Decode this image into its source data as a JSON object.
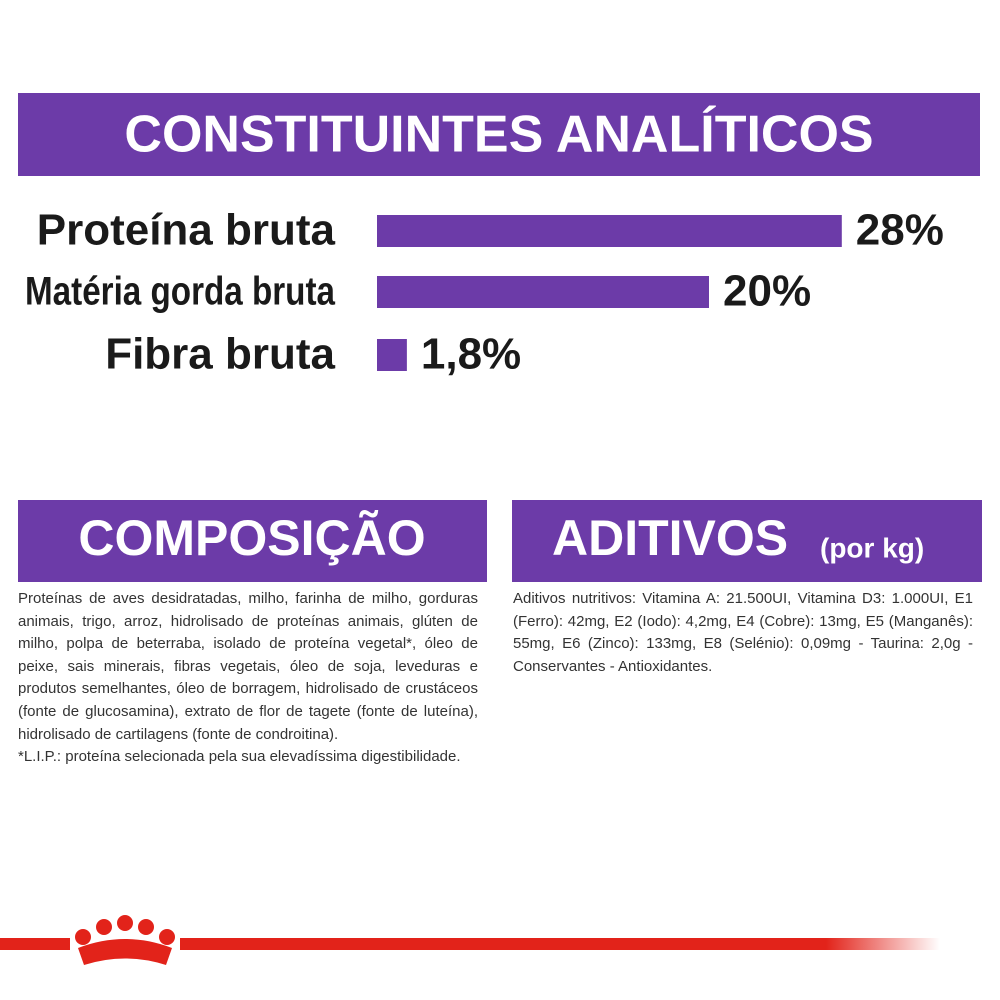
{
  "header": {
    "title": "CONSTITUINTES ANALÍTICOS"
  },
  "chart_data": {
    "type": "bar",
    "orientation": "horizontal",
    "categories": [
      "Proteína bruta",
      "Matéria gorda bruta",
      "Fibra bruta"
    ],
    "values": [
      28,
      20,
      1.8
    ],
    "value_labels": [
      "28%",
      "20%",
      "1,8%"
    ],
    "color": "#6c3ba8"
  },
  "composition": {
    "title": "COMPOSIÇÃO",
    "text": "Proteínas de aves desidratadas, milho, farinha de milho, gorduras animais, trigo, arroz, hidrolisado de proteínas animais, glúten de milho, polpa de beterraba, isolado de proteína vegetal*, óleo de peixe, sais minerais, fibras vegetais, óleo de soja, leveduras e produtos semelhantes, óleo de borragem, hidrolisado de crustáceos (fonte de glucosamina), extrato de flor de tagete (fonte de luteína), hidrolisado de cartilagens (fonte de condroitina).",
    "note": "*L.I.P.: proteína selecionada pela sua elevadíssima digestibilidade."
  },
  "additives": {
    "title": "ADITIVOS",
    "unit": "(por kg)",
    "text": "Aditivos nutritivos: Vitamina A: 21.500UI, Vitamina D3: 1.000UI, E1 (Ferro): 42mg, E2 (Iodo): 4,2mg, E4 (Cobre): 13mg, E5 (Manganês): 55mg, E6 (Zinco): 133mg, E8 (Selénio): 0,09mg - Taurina: 2,0g - Conservantes - Antioxidantes."
  }
}
